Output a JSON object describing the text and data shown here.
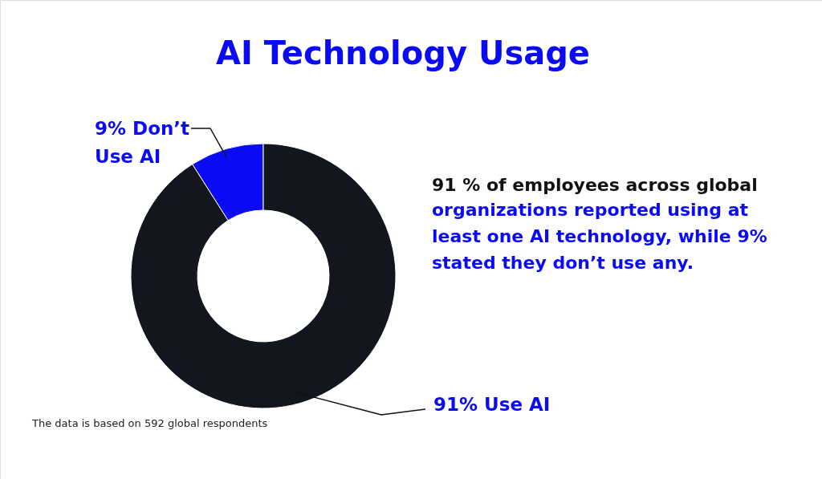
{
  "chart_data": {
    "type": "donut",
    "title": "AI Technology Usage",
    "categories": [
      "9% Don’t Use AI",
      "91% Use AI"
    ],
    "values": [
      9,
      91
    ],
    "colors": [
      "#0a0af5",
      "#14161f"
    ],
    "annotations": [
      "91 % of employees across global",
      "organizations reported using at least one AI technology, while 9% stated they don’t use any.",
      "The  data is based on 592 global respondents"
    ]
  }
}
